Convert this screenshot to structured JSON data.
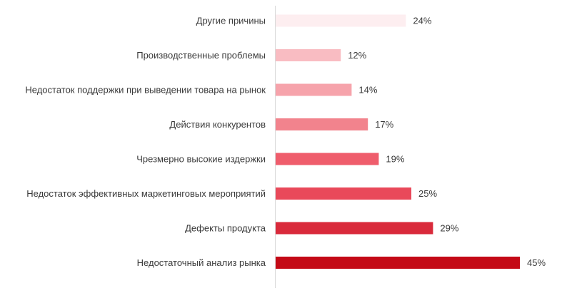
{
  "chart_data": {
    "type": "bar",
    "orientation": "horizontal",
    "categories": [
      "Другие причины",
      "Производственные проблемы",
      "Недостаток поддержки при выведении товара на рынок",
      "Действия конкурентов",
      "Чрезмерно высокие издержки",
      "Недостаток эффективных маркетинговых мероприятий",
      "Дефекты продукта",
      "Недостаточный анализ рынка"
    ],
    "values": [
      24,
      12,
      14,
      17,
      19,
      25,
      29,
      45
    ],
    "value_labels": [
      "24%",
      "12%",
      "14%",
      "17%",
      "19%",
      "25%",
      "29%",
      "45%"
    ],
    "colors": [
      "#fdeef0",
      "#f9bcc2",
      "#f6a3ab",
      "#f2838d",
      "#ef5d6c",
      "#e9495a",
      "#d92a3b",
      "#c40a16"
    ],
    "title": "",
    "xlabel": "",
    "ylabel": "",
    "xlim": [
      0,
      50
    ],
    "grid": false,
    "legend": "none"
  }
}
